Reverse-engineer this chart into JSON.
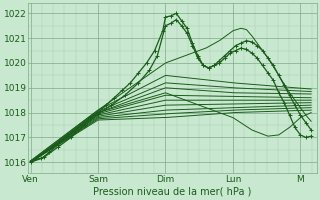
{
  "title": "Pression niveau de la mer( hPa )",
  "ylabel_ticks": [
    1016,
    1017,
    1018,
    1019,
    1020,
    1021,
    1022
  ],
  "xtick_labels": [
    "Ven",
    "Sam",
    "Dim",
    "Lun",
    "M"
  ],
  "xtick_positions": [
    0,
    0.25,
    0.5,
    0.75,
    1.0
  ],
  "xlim": [
    -0.01,
    1.06
  ],
  "ylim": [
    1015.55,
    1022.4
  ],
  "bg_color": "#c8e8d0",
  "line_color": "#1a5c1a",
  "grid_minor_color": "#a8cdb0",
  "grid_major_color": "#80aa88",
  "figsize": [
    3.2,
    2.0
  ],
  "dpi": 100
}
